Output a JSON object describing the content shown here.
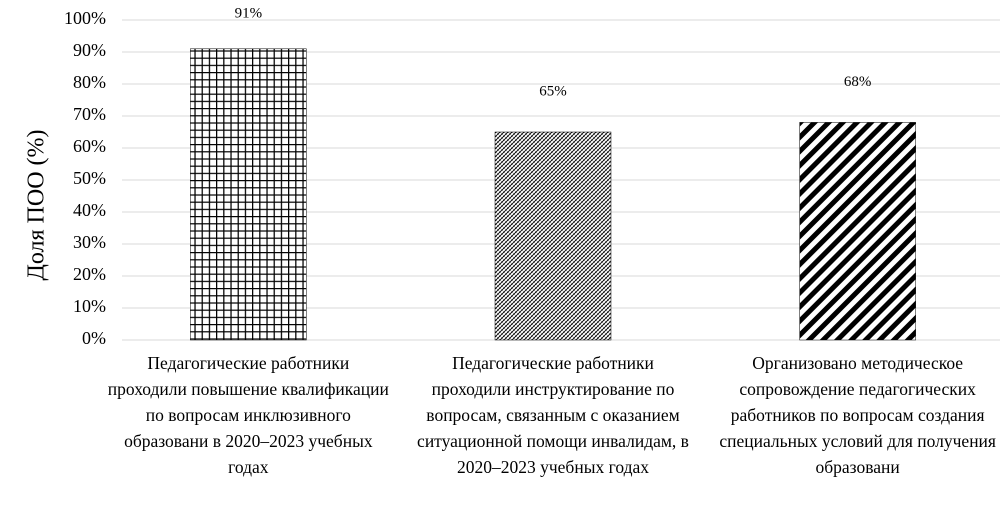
{
  "chart_data": {
    "type": "bar",
    "y_label": "Доля ПОО (%)",
    "categories": [
      "Педагогические работники проходили повышение квалификации по вопросам инклюзивного образовани в 2020–2023 учебных годах",
      "Педагогические работники проходили инструктирование по вопросам, связанным с оказанием ситуационной помощи инвалидам, в 2020–2023 учебных годах",
      "Организовано методическое сопровождение педагогических работников по вопросам создания специальных условий для получения образовани"
    ],
    "values": [
      91,
      65,
      68
    ],
    "value_labels": [
      "91%",
      "65%",
      "68%"
    ],
    "patterns": [
      "grid",
      "dense-hatch",
      "diagonal"
    ],
    "color": "#000000",
    "ylim": [
      0,
      100
    ],
    "yticks": [
      {
        "value": 0,
        "label": "0%"
      },
      {
        "value": 10,
        "label": "10%"
      },
      {
        "value": 20,
        "label": "20%"
      },
      {
        "value": 30,
        "label": "30%"
      },
      {
        "value": 40,
        "label": "40%"
      },
      {
        "value": 50,
        "label": "50%"
      },
      {
        "value": 60,
        "label": "60%"
      },
      {
        "value": 70,
        "label": "70%"
      },
      {
        "value": 80,
        "label": "80%"
      },
      {
        "value": 90,
        "label": "90%"
      },
      {
        "value": 100,
        "label": "100%"
      }
    ],
    "grid": true
  }
}
